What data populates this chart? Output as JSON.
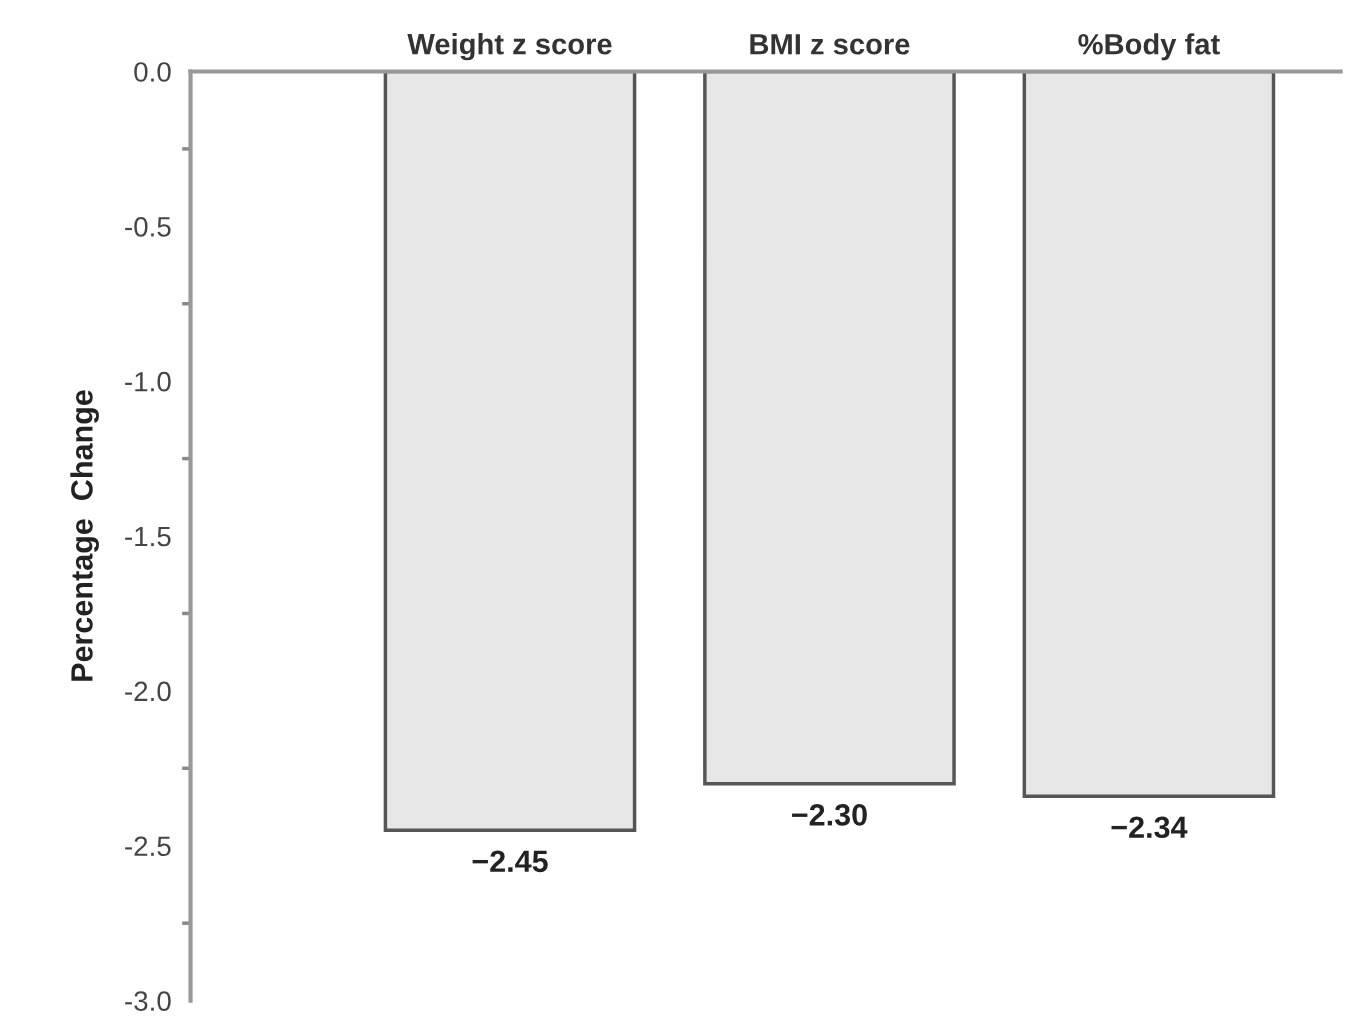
{
  "chart_data": {
    "type": "bar",
    "ylabel": "Percentage  Change",
    "categories": [
      "Weight z score",
      "BMI z score",
      "%Body fat"
    ],
    "values": [
      -2.45,
      -2.3,
      -2.34
    ],
    "value_labels": [
      "−2.45",
      "−2.30",
      "−2.34"
    ],
    "colors": [
      "#e6e6e6",
      "#e6e6e6",
      "#e6e6e6"
    ],
    "ylim": [
      -3.0,
      0.0
    ],
    "yticks": [
      {
        "value": 0.0,
        "label": "0.0"
      },
      {
        "value": -0.5,
        "label": "-0.5"
      },
      {
        "value": -1.0,
        "label": "-1.0"
      },
      {
        "value": -1.5,
        "label": "-1.5"
      },
      {
        "value": -2.0,
        "label": "-2.0"
      },
      {
        "value": -2.5,
        "label": "-2.5"
      },
      {
        "value": -3.0,
        "label": "-3.0"
      }
    ],
    "grid": false,
    "legend": false
  }
}
